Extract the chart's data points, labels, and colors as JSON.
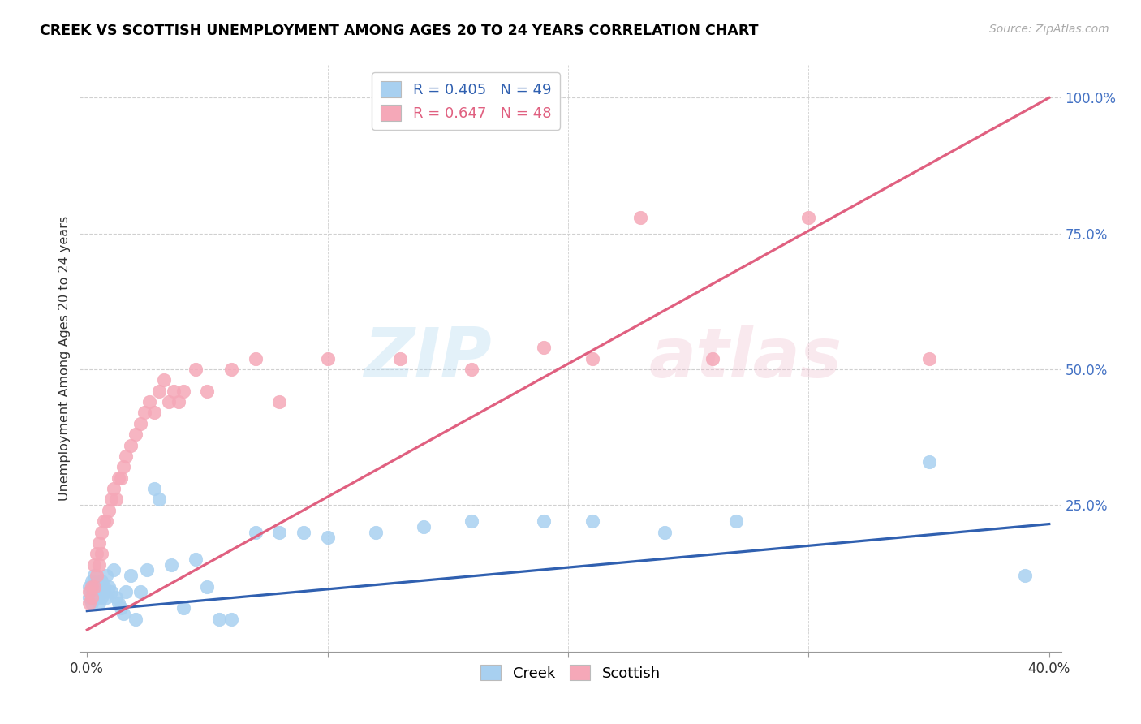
{
  "title": "CREEK VS SCOTTISH UNEMPLOYMENT AMONG AGES 20 TO 24 YEARS CORRELATION CHART",
  "source": "Source: ZipAtlas.com",
  "ylabel": "Unemployment Among Ages 20 to 24 years",
  "xlim": [
    -0.003,
    0.405
  ],
  "ylim": [
    -0.02,
    1.06
  ],
  "xtick_vals": [
    0.0,
    0.1,
    0.2,
    0.3,
    0.4
  ],
  "xtick_labels": [
    "0.0%",
    "",
    "",
    "",
    "40.0%"
  ],
  "ytick_vals": [
    0.25,
    0.5,
    0.75,
    1.0
  ],
  "ytick_labels": [
    "25.0%",
    "50.0%",
    "75.0%",
    "100.0%"
  ],
  "creek_color": "#a8d0f0",
  "scottish_color": "#f5a8b8",
  "creek_line_color": "#3060b0",
  "scottish_line_color": "#e06080",
  "creek_R": 0.405,
  "creek_N": 49,
  "scottish_R": 0.647,
  "scottish_N": 48,
  "creek_x": [
    0.001,
    0.001,
    0.002,
    0.002,
    0.003,
    0.003,
    0.004,
    0.004,
    0.005,
    0.005,
    0.006,
    0.006,
    0.007,
    0.007,
    0.008,
    0.008,
    0.009,
    0.01,
    0.011,
    0.012,
    0.013,
    0.014,
    0.015,
    0.016,
    0.018,
    0.02,
    0.022,
    0.025,
    0.028,
    0.03,
    0.035,
    0.04,
    0.045,
    0.05,
    0.055,
    0.06,
    0.07,
    0.08,
    0.09,
    0.1,
    0.12,
    0.14,
    0.16,
    0.19,
    0.21,
    0.24,
    0.27,
    0.35,
    0.39
  ],
  "creek_y": [
    0.08,
    0.1,
    0.07,
    0.11,
    0.09,
    0.12,
    0.08,
    0.1,
    0.07,
    0.09,
    0.08,
    0.11,
    0.09,
    0.1,
    0.08,
    0.12,
    0.1,
    0.09,
    0.13,
    0.08,
    0.07,
    0.06,
    0.05,
    0.09,
    0.12,
    0.04,
    0.09,
    0.13,
    0.28,
    0.26,
    0.14,
    0.06,
    0.15,
    0.1,
    0.04,
    0.04,
    0.2,
    0.2,
    0.2,
    0.19,
    0.2,
    0.21,
    0.22,
    0.22,
    0.22,
    0.2,
    0.22,
    0.33,
    0.12
  ],
  "scottish_x": [
    0.001,
    0.001,
    0.002,
    0.002,
    0.003,
    0.003,
    0.004,
    0.004,
    0.005,
    0.005,
    0.006,
    0.006,
    0.007,
    0.008,
    0.009,
    0.01,
    0.011,
    0.012,
    0.013,
    0.014,
    0.015,
    0.016,
    0.018,
    0.02,
    0.022,
    0.024,
    0.026,
    0.028,
    0.03,
    0.032,
    0.034,
    0.036,
    0.038,
    0.04,
    0.045,
    0.05,
    0.06,
    0.07,
    0.08,
    0.1,
    0.13,
    0.16,
    0.19,
    0.21,
    0.23,
    0.26,
    0.3,
    0.35
  ],
  "scottish_y": [
    0.07,
    0.09,
    0.08,
    0.1,
    0.1,
    0.14,
    0.12,
    0.16,
    0.14,
    0.18,
    0.16,
    0.2,
    0.22,
    0.22,
    0.24,
    0.26,
    0.28,
    0.26,
    0.3,
    0.3,
    0.32,
    0.34,
    0.36,
    0.38,
    0.4,
    0.42,
    0.44,
    0.42,
    0.46,
    0.48,
    0.44,
    0.46,
    0.44,
    0.46,
    0.5,
    0.46,
    0.5,
    0.52,
    0.44,
    0.52,
    0.52,
    0.5,
    0.54,
    0.52,
    0.78,
    0.52,
    0.78,
    0.52
  ],
  "creek_trend": [
    0.0,
    0.4
  ],
  "creek_trend_y": [
    0.055,
    0.215
  ],
  "scottish_trend": [
    0.0,
    0.4
  ],
  "scottish_trend_y": [
    0.02,
    1.0
  ]
}
